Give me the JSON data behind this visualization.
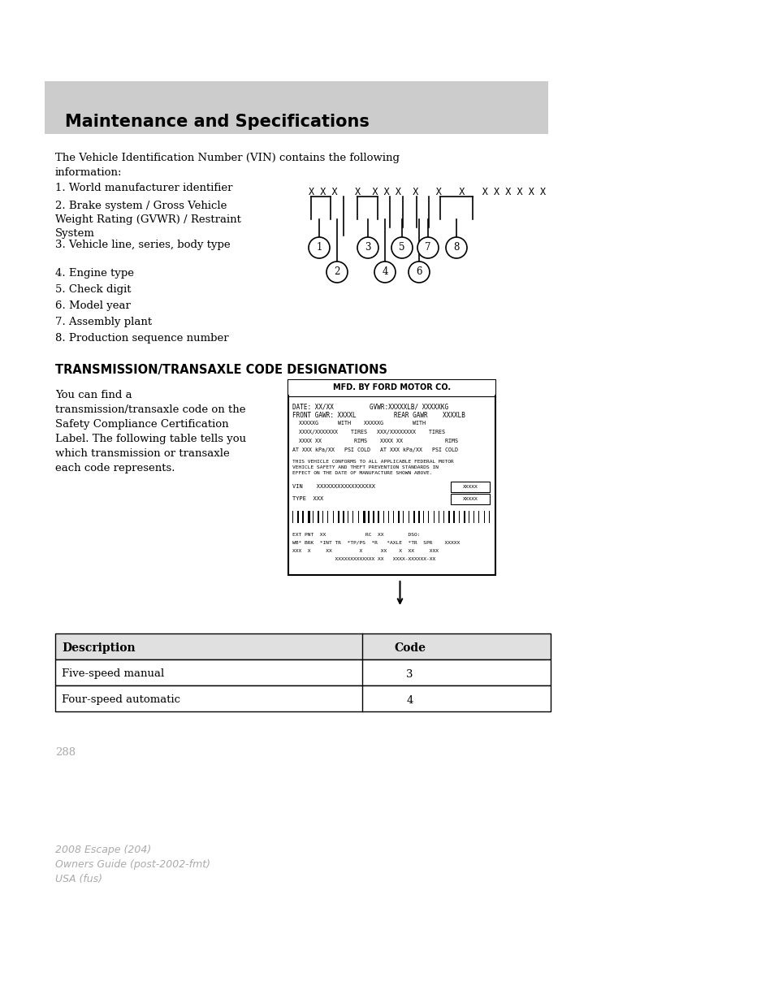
{
  "page_bg": "#ffffff",
  "header_bg": "#cccccc",
  "header_text": "Maintenance and Specifications",
  "header_text_color": "#000000",
  "body_text_color": "#000000",
  "gray_text_color": "#aaaaaa",
  "vin_intro": "The Vehicle Identification Number (VIN) contains the following\ninformation:",
  "vin_items": [
    "1. World manufacturer identifier",
    "2. Brake system / Gross Vehicle\nWeight Rating (GVWR) / Restraint\nSystem",
    "3. Vehicle line, series, body type",
    "4. Engine type",
    "5. Check digit",
    "6. Model year",
    "7. Assembly plant",
    "8. Production sequence number"
  ],
  "vin_diagram_text": "X X X   X   X X X   X   X   X   X X X X X X",
  "section_title": "TRANSMISSION/TRANSAXLE CODE DESIGNATIONS",
  "section_body": "You can find a\ntransmission/transaxle code on the\nSafety Compliance Certification\nLabel. The following table tells you\nwhich transmission or transaxle\neach code represents.",
  "table_header": [
    "Description",
    "Code"
  ],
  "table_rows": [
    [
      "Five-speed manual",
      "3"
    ],
    [
      "Four-speed automatic",
      "4"
    ]
  ],
  "page_number": "288",
  "footer_line1": "2008 Escape (204)",
  "footer_line2": "Owners Guide (post-2002-fmt)",
  "footer_line3": "USA (fus)"
}
